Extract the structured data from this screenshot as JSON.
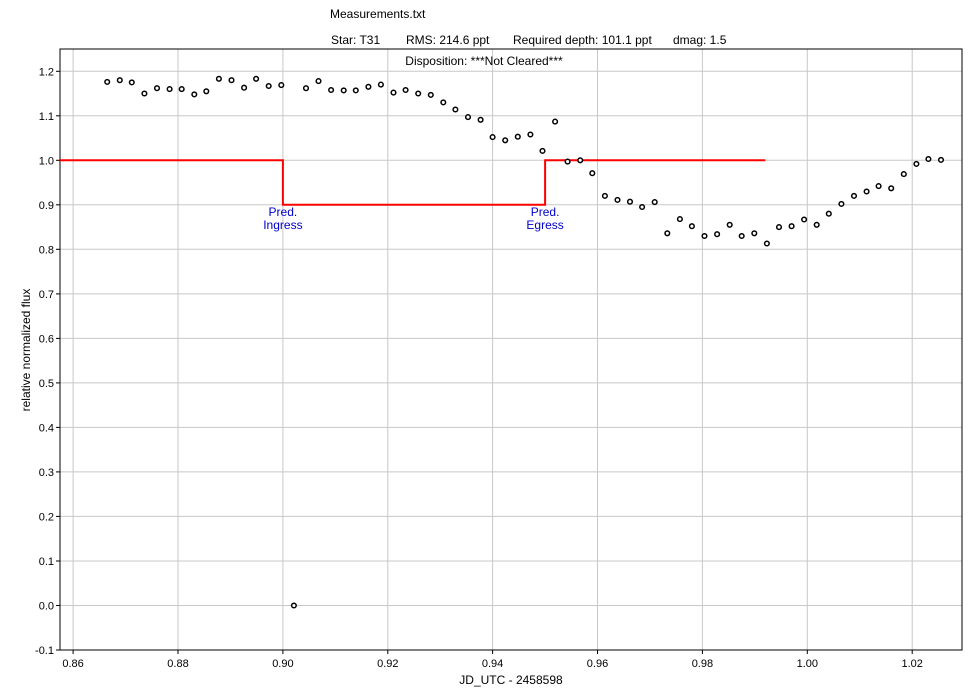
{
  "chart_data": {
    "type": "scatter",
    "title": "Measurements.txt",
    "subtitle_items": {
      "star": "Star: T31",
      "rms": "RMS: 214.6 ppt",
      "depth": "Required depth: 101.1 ppt",
      "dmag": "dmag: 1.5"
    },
    "disposition": "Disposition: ***Not Cleared***",
    "xlabel": "JD_UTC - 2458598",
    "ylabel": "relative normalized flux",
    "xlim": [
      0.8575,
      1.0295
    ],
    "ylim": [
      -0.1,
      1.25
    ],
    "xticks": [
      0.86,
      0.88,
      0.9,
      0.92,
      0.94,
      0.96,
      0.98,
      1.0,
      1.02
    ],
    "xtick_labels": [
      "0.86",
      "0.88",
      "0.90",
      "0.92",
      "0.94",
      "0.96",
      "0.98",
      "1.00",
      "1.02"
    ],
    "yticks": [
      -0.1,
      0.0,
      0.1,
      0.2,
      0.3,
      0.4,
      0.5,
      0.6,
      0.7,
      0.8,
      0.9,
      1.0,
      1.1,
      1.2
    ],
    "ytick_labels": [
      "-0.1",
      "0.0",
      "0.1",
      "0.2",
      "0.3",
      "0.4",
      "0.5",
      "0.6",
      "0.7",
      "0.8",
      "0.9",
      "1.0",
      "1.1",
      "1.2"
    ],
    "grid": true,
    "series": [
      {
        "marker": "open-circle",
        "color": "#000000",
        "points": [
          [
            0.8665,
            1.176
          ],
          [
            0.8689,
            1.18
          ],
          [
            0.8712,
            1.175
          ],
          [
            0.8736,
            1.15
          ],
          [
            0.876,
            1.162
          ],
          [
            0.8784,
            1.16
          ],
          [
            0.8807,
            1.16
          ],
          [
            0.8831,
            1.148
          ],
          [
            0.8854,
            1.155
          ],
          [
            0.8878,
            1.183
          ],
          [
            0.8902,
            1.18
          ],
          [
            0.8926,
            1.163
          ],
          [
            0.8949,
            1.183
          ],
          [
            0.8973,
            1.167
          ],
          [
            0.8997,
            1.169
          ],
          [
            0.9021,
            0.0
          ],
          [
            0.9044,
            1.162
          ],
          [
            0.9068,
            1.178
          ],
          [
            0.9092,
            1.158
          ],
          [
            0.9116,
            1.157
          ],
          [
            0.9139,
            1.157
          ],
          [
            0.9163,
            1.165
          ],
          [
            0.9187,
            1.17
          ],
          [
            0.9211,
            1.152
          ],
          [
            0.9234,
            1.158
          ],
          [
            0.9258,
            1.15
          ],
          [
            0.9282,
            1.147
          ],
          [
            0.9306,
            1.13
          ],
          [
            0.9329,
            1.114
          ],
          [
            0.9353,
            1.097
          ],
          [
            0.9377,
            1.091
          ],
          [
            0.94,
            1.052
          ],
          [
            0.9424,
            1.045
          ],
          [
            0.9448,
            1.053
          ],
          [
            0.9472,
            1.058
          ],
          [
            0.9495,
            1.021
          ],
          [
            0.9519,
            1.087
          ],
          [
            0.9543,
            0.997
          ],
          [
            0.9567,
            1.0
          ],
          [
            0.959,
            0.971
          ],
          [
            0.9614,
            0.92
          ],
          [
            0.9638,
            0.911
          ],
          [
            0.9662,
            0.907
          ],
          [
            0.9685,
            0.895
          ],
          [
            0.9709,
            0.906
          ],
          [
            0.9733,
            0.836
          ],
          [
            0.9757,
            0.868
          ],
          [
            0.978,
            0.852
          ],
          [
            0.9804,
            0.83
          ],
          [
            0.9828,
            0.834
          ],
          [
            0.9852,
            0.855
          ],
          [
            0.9875,
            0.83
          ],
          [
            0.9899,
            0.836
          ],
          [
            0.9923,
            0.813
          ],
          [
            0.9946,
            0.85
          ],
          [
            0.997,
            0.852
          ],
          [
            0.9994,
            0.867
          ],
          [
            1.0018,
            0.855
          ],
          [
            1.0041,
            0.88
          ],
          [
            1.0065,
            0.902
          ],
          [
            1.0089,
            0.92
          ],
          [
            1.0113,
            0.93
          ],
          [
            1.0136,
            0.942
          ],
          [
            1.016,
            0.937
          ],
          [
            1.0184,
            0.969
          ],
          [
            1.0208,
            0.992
          ],
          [
            1.0231,
            1.003
          ],
          [
            1.0255,
            1.001
          ]
        ]
      }
    ],
    "model_line": {
      "color": "#ff0000",
      "points": [
        [
          0.8575,
          1.0
        ],
        [
          0.9,
          1.0
        ],
        [
          0.9,
          0.9
        ],
        [
          0.95,
          0.9
        ],
        [
          0.95,
          1.0
        ],
        [
          0.992,
          1.0
        ]
      ]
    },
    "annotations": [
      {
        "lines": [
          "Pred.",
          "Ingress"
        ],
        "x": 0.9,
        "y": 0.875,
        "color": "#0000cc"
      },
      {
        "lines": [
          "Pred.",
          "Egress"
        ],
        "x": 0.95,
        "y": 0.875,
        "color": "#0000cc"
      }
    ]
  }
}
